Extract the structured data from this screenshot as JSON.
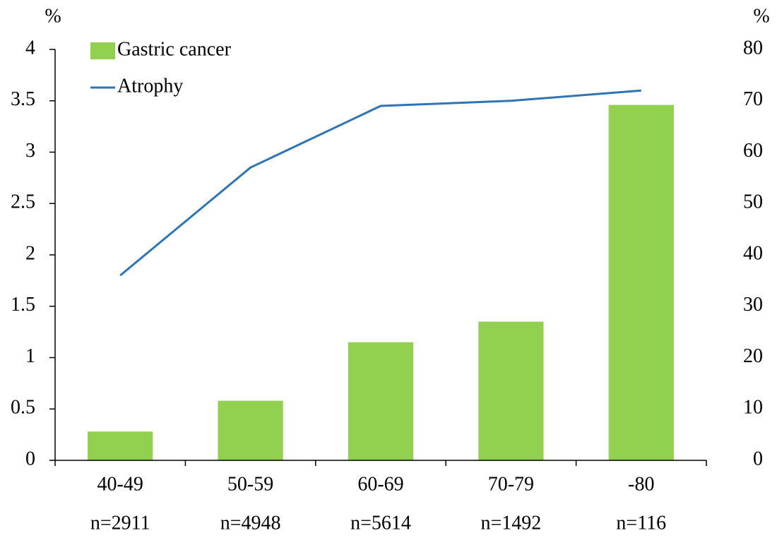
{
  "chart_data": {
    "type": "bar_line",
    "y_unit": "%",
    "y2_unit": "%",
    "categories": [
      "40-49",
      "50-59",
      "60-69",
      "70-79",
      "-80"
    ],
    "sample_sizes": [
      "n=2911",
      "n=4948",
      "n=5614",
      "n=1492",
      "n=116"
    ],
    "series": [
      {
        "name": "Gastric cancer",
        "type": "bar",
        "color": "#92d050",
        "values": [
          0.28,
          0.58,
          1.15,
          1.35,
          3.46
        ]
      },
      {
        "name": "Atrophy",
        "type": "line",
        "axis": "y2",
        "color": "#2e75b6",
        "values": [
          36,
          57,
          69,
          70,
          72
        ]
      }
    ],
    "ylim": [
      0,
      4
    ],
    "yticks": [
      0,
      0.5,
      1,
      1.5,
      2,
      2.5,
      3,
      3.5,
      4
    ],
    "y2lim": [
      0,
      80
    ],
    "y2ticks": [
      0,
      10,
      20,
      30,
      40,
      50,
      60,
      70,
      80
    ],
    "grid": false,
    "legend": "top-left"
  }
}
